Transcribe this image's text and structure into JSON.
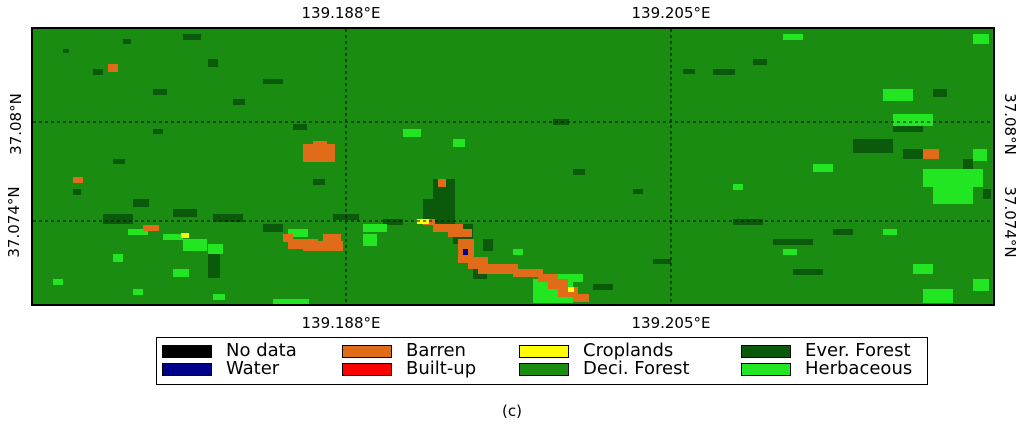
{
  "map": {
    "lon_ticks": [
      "139.188°E",
      "139.205°E"
    ],
    "lat_ticks": [
      "37.08°N",
      "37.074°N"
    ],
    "gridlines": true,
    "gridline_style": "dashed",
    "background_class": "Deci. Forest"
  },
  "legend": {
    "items": [
      {
        "label": "No data",
        "color": "#000000"
      },
      {
        "label": "Water",
        "color": "#00008b"
      },
      {
        "label": "Barren",
        "color": "#e06c1a"
      },
      {
        "label": "Built-up",
        "color": "#ff0000"
      },
      {
        "label": "Croplands",
        "color": "#ffff00"
      },
      {
        "label": "Deci. Forest",
        "color": "#1a8c12"
      },
      {
        "label": "Ever. Forest",
        "color": "#0b5a0b"
      },
      {
        "label": "Herbaceous",
        "color": "#22e622"
      }
    ]
  },
  "caption": "(c)"
}
